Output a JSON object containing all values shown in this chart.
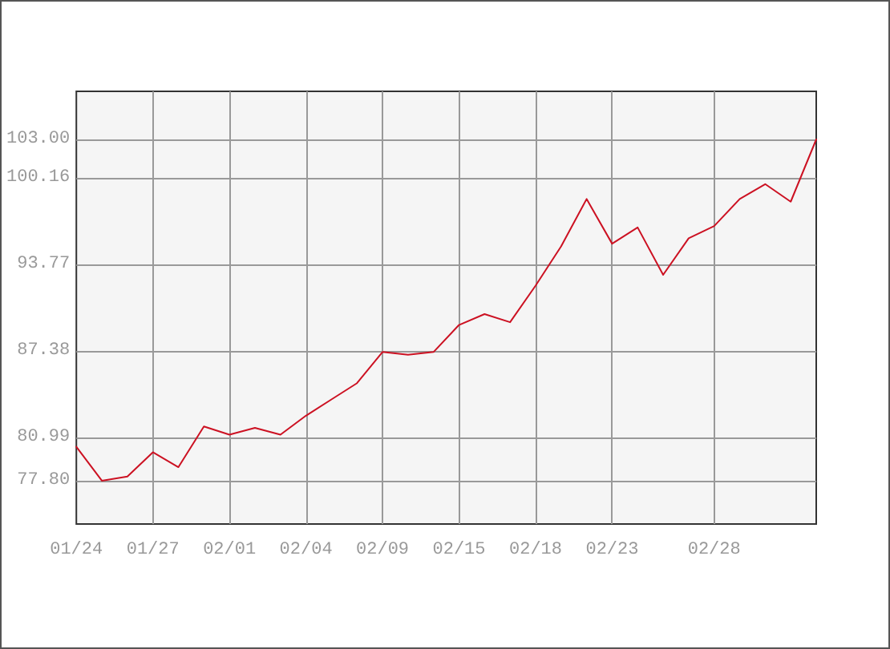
{
  "chart_data": {
    "type": "line",
    "categories": [
      "01/24",
      null,
      null,
      "01/27",
      null,
      null,
      "02/01",
      null,
      null,
      "02/04",
      null,
      null,
      "02/09",
      null,
      null,
      "02/15",
      null,
      null,
      "02/18",
      null,
      null,
      "02/23",
      null,
      null,
      null,
      "02/28",
      null,
      null,
      null,
      null
    ],
    "values": [
      80.3,
      77.8,
      78.1,
      79.9,
      78.8,
      81.8,
      81.2,
      81.7,
      81.2,
      82.6,
      83.8,
      85.0,
      87.3,
      87.1,
      87.3,
      89.3,
      90.1,
      89.5,
      92.2,
      95.1,
      98.6,
      95.3,
      96.5,
      93.0,
      95.7,
      96.6,
      98.6,
      99.7,
      98.4,
      103.0
    ],
    "color": "#cc1122",
    "ylim": [
      74.6,
      106.55
    ],
    "yticks": [
      {
        "value": 77.8,
        "label": "77.80"
      },
      80.99,
      87.38,
      93.77,
      100.16,
      {
        "value": 103,
        "label": "103.00"
      }
    ],
    "grid": true,
    "marker": "none",
    "line_style": "solid"
  }
}
